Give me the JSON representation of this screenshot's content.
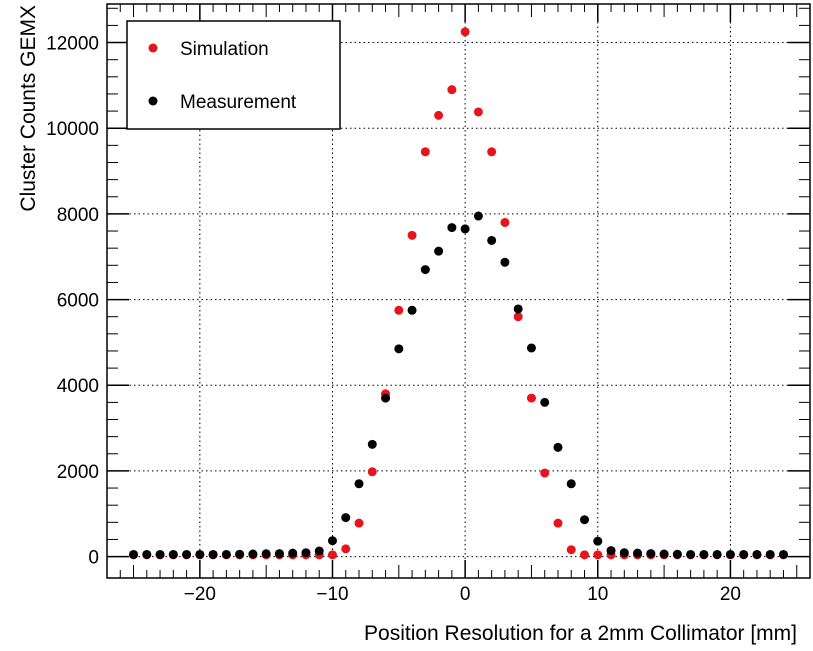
{
  "chart_data": {
    "type": "scatter",
    "title": "",
    "xlabel": "Position Resolution for a 2mm Collimator [mm]",
    "ylabel": "Cluster Counts GEMX",
    "xlim": [
      -27,
      26
    ],
    "ylim": [
      -500,
      12900
    ],
    "x_ticks": [
      -20,
      -10,
      0,
      10,
      20
    ],
    "x_tick_labels": [
      "−20",
      "−10",
      "0",
      "10",
      "20"
    ],
    "y_ticks": [
      0,
      2000,
      4000,
      6000,
      8000,
      10000,
      12000
    ],
    "y_tick_labels": [
      "0",
      "2000",
      "4000",
      "6000",
      "8000",
      "10000",
      "12000"
    ],
    "grid": true,
    "legend_position": "top-left",
    "series": [
      {
        "name": "Simulation",
        "color": "#e8141b",
        "x": [
          -25,
          -24,
          -23,
          -22,
          -21,
          -20,
          -19,
          -18,
          -17,
          -16,
          -15,
          -14,
          -13,
          -12,
          -11,
          -10,
          -9,
          -8,
          -7,
          -6,
          -5,
          -4,
          -3,
          -2,
          -1,
          0,
          1,
          2,
          3,
          4,
          5,
          6,
          7,
          8,
          9,
          10,
          11,
          12,
          13,
          14,
          15,
          16,
          17,
          18,
          19,
          20,
          21,
          22,
          23,
          24
        ],
        "y": [
          40,
          40,
          40,
          40,
          40,
          40,
          40,
          40,
          40,
          40,
          40,
          40,
          40,
          40,
          40,
          40,
          180,
          780,
          1980,
          3800,
          5750,
          7500,
          9450,
          10300,
          10900,
          12250,
          10380,
          9450,
          7800,
          5600,
          3700,
          1950,
          780,
          160,
          40,
          40,
          40,
          40,
          40,
          40,
          40,
          40,
          40,
          40,
          40,
          40,
          40,
          40,
          40,
          40
        ]
      },
      {
        "name": "Measurement",
        "color": "#000000",
        "x": [
          -25,
          -24,
          -23,
          -22,
          -21,
          -20,
          -19,
          -18,
          -17,
          -16,
          -15,
          -14,
          -13,
          -12,
          -11,
          -10,
          -9,
          -8,
          -7,
          -6,
          -5,
          -4,
          -3,
          -2,
          -1,
          0,
          1,
          2,
          3,
          4,
          5,
          6,
          7,
          8,
          9,
          10,
          11,
          12,
          13,
          14,
          15,
          16,
          17,
          18,
          19,
          20,
          21,
          22,
          23,
          24
        ],
        "y": [
          50,
          50,
          50,
          50,
          50,
          50,
          50,
          50,
          55,
          60,
          65,
          70,
          80,
          90,
          130,
          370,
          910,
          1700,
          2620,
          3700,
          4850,
          5750,
          6700,
          7130,
          7680,
          7650,
          7950,
          7380,
          6870,
          5780,
          4870,
          3600,
          2550,
          1700,
          860,
          360,
          140,
          90,
          80,
          70,
          60,
          55,
          50,
          50,
          50,
          50,
          50,
          50,
          50,
          50
        ]
      }
    ]
  }
}
